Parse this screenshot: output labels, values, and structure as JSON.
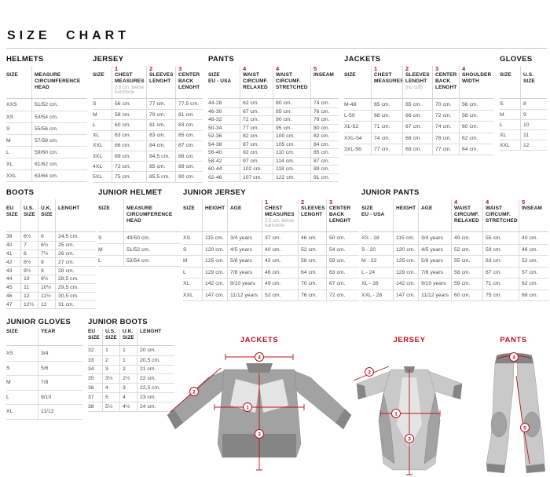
{
  "page": {
    "title": "SIZE CHART"
  },
  "colors": {
    "accent": "#bb1420"
  },
  "tables": {
    "helmets": {
      "title": "HELMETS",
      "columns": [
        {
          "label": "SIZE"
        },
        {
          "label": "MEASURE\nCIRCUMFERENCE\nHEAD"
        }
      ],
      "rows": [
        [
          "XXS",
          "51/52 cm."
        ],
        [
          "XS",
          "53/54 cm."
        ],
        [
          "S",
          "55/56 cm."
        ],
        [
          "M",
          "57/58 cm."
        ],
        [
          "L",
          "59/60 cm."
        ],
        [
          "XL",
          "61/62 cm."
        ],
        [
          "XXL",
          "63/64 cm."
        ]
      ]
    },
    "jersey": {
      "title": "JERSEY",
      "columns": [
        {
          "label": "SIZE"
        },
        {
          "num": "1",
          "label": "CHEST\nMEASURES",
          "note": "2,5 cm. below harmhole"
        },
        {
          "num": "2",
          "label": "SLEEVES\nLENGHT"
        },
        {
          "num": "3",
          "label": "CENTER\nBACK\nLENGHT"
        }
      ],
      "rows": [
        [
          "S",
          "56 cm.",
          "77 cm.",
          "77,5 cm."
        ],
        [
          "M",
          "58 cm.",
          "79 cm.",
          "81 cm."
        ],
        [
          "L",
          "60 cm.",
          "81 cm.",
          "83 cm."
        ],
        [
          "XL",
          "63 cm.",
          "83 cm.",
          "85 cm."
        ],
        [
          "XXL",
          "66 cm.",
          "84 cm.",
          "87 cm."
        ],
        [
          "3XL",
          "69 cm.",
          "84,5 cm.",
          "88 cm."
        ],
        [
          "4XL",
          "72 cm.",
          "85 cm.",
          "89 cm."
        ],
        [
          "5XL",
          "75 cm.",
          "85,5 cm.",
          "90 cm."
        ]
      ]
    },
    "pants": {
      "title": "PANTS",
      "columns": [
        {
          "label": "SIZE\nEU - USA"
        },
        {
          "num": "4",
          "label": "WAIST\nCIRCUMF.\nRELAXED"
        },
        {
          "num": "4",
          "label": "WAIST\nCIRCUMF.\nSTRETCHED"
        },
        {
          "num": "5",
          "label": "INSEAM"
        }
      ],
      "rows": [
        [
          "44-28",
          "62 cm.",
          "80 cm.",
          "74 cm."
        ],
        [
          "46-30",
          "67 cm.",
          "85 cm.",
          "76 cm."
        ],
        [
          "48-32",
          "72 cm.",
          "90 cm.",
          "78 cm."
        ],
        [
          "50-34",
          "77 cm.",
          "95 cm.",
          "80 cm."
        ],
        [
          "52-36",
          "82 cm.",
          "100 cm.",
          "82 cm."
        ],
        [
          "54-38",
          "87 cm.",
          "105 cm.",
          "84 cm."
        ],
        [
          "56-40",
          "92 cm.",
          "110 cm.",
          "85 cm."
        ],
        [
          "58-42",
          "97 cm.",
          "114 cm.",
          "87 cm."
        ],
        [
          "60-44",
          "102 cm.",
          "118 cm.",
          "89 cm."
        ],
        [
          "62-46",
          "107 cm.",
          "122 cm.",
          "91 cm."
        ]
      ]
    },
    "jackets": {
      "title": "JACKETS",
      "columns": [
        {
          "label": "SIZE"
        },
        {
          "num": "1",
          "label": "CHEST\nMEASURES"
        },
        {
          "num": "2",
          "label": "SLEEVES\nLENGHT",
          "note": "(no cuff)"
        },
        {
          "num": "3",
          "label": "CENTER\nBACK\nLENGHT"
        },
        {
          "num": "4",
          "label": "SHOULDER\nWIDTH"
        }
      ],
      "rows": [
        [
          "M-48",
          "65 cm.",
          "65 cm.",
          "70 cm.",
          "56 cm."
        ],
        [
          "L-50",
          "68 cm.",
          "66 cm.",
          "72 cm.",
          "58 cm."
        ],
        [
          "XL-52",
          "71 cm.",
          "67 cm.",
          "74 cm.",
          "60 cm."
        ],
        [
          "XXL-54",
          "74 cm.",
          "68 cm.",
          "76 cm.",
          "62 cm."
        ],
        [
          "3XL-56",
          "77 cm.",
          "69 cm.",
          "77 cm.",
          "64 cm."
        ]
      ]
    },
    "gloves": {
      "title": "GLOVES",
      "columns": [
        {
          "label": "SIZE"
        },
        {
          "label": "U.S. SIZE"
        }
      ],
      "rows": [
        [
          "S",
          "8"
        ],
        [
          "M",
          "9"
        ],
        [
          "L",
          "10"
        ],
        [
          "XL",
          "11"
        ],
        [
          "XXL",
          "12"
        ]
      ]
    },
    "boots": {
      "title": "BOOTS",
      "columns": [
        {
          "label": "EU\nSIZE"
        },
        {
          "label": "U.S.\nSIZE"
        },
        {
          "label": "U.K.\nSIZE"
        },
        {
          "label": "LENGHT"
        }
      ],
      "rows": [
        [
          "39",
          "6½",
          "6",
          "24,5 cm."
        ],
        [
          "40",
          "7",
          "6½",
          "25 cm."
        ],
        [
          "41",
          "8",
          "7½",
          "26 cm."
        ],
        [
          "42",
          "8½",
          "8",
          "27 cm."
        ],
        [
          "43",
          "9½",
          "9",
          "28 cm."
        ],
        [
          "44",
          "10",
          "9½",
          "28,5 cm."
        ],
        [
          "45",
          "11",
          "10½",
          "29,5 cm."
        ],
        [
          "46",
          "12",
          "11½",
          "30,5 cm."
        ],
        [
          "47",
          "12½",
          "12",
          "31 cm."
        ]
      ]
    },
    "junior_helmet": {
      "title": "JUNIOR HELMET",
      "columns": [
        {
          "label": "SIZE"
        },
        {
          "label": "MEASURE\nCIRCUMFERENCE\nHEAD"
        }
      ],
      "rows": [
        [
          "S",
          "49/50 cm."
        ],
        [
          "M",
          "51/52 cm."
        ],
        [
          "L",
          "53/54 cm."
        ]
      ]
    },
    "junior_jersey": {
      "title": "JUNIOR JERSEY",
      "columns": [
        {
          "label": "SIZE"
        },
        {
          "label": "HEIGHT"
        },
        {
          "label": "AGE"
        },
        {
          "num": "1",
          "label": "CHEST\nMEASURES",
          "note": "2,5 cm. below harmhole"
        },
        {
          "num": "2",
          "label": "SLEEVES\nLENGHT"
        },
        {
          "num": "3",
          "label": "CENTER\nBACK\nLENGHT"
        }
      ],
      "rows": [
        [
          "XS",
          "115 cm.",
          "3/4 years",
          "37 cm.",
          "46 cm.",
          "50 cm."
        ],
        [
          "S",
          "120 cm.",
          "4/5 years",
          "40 cm.",
          "52 cm.",
          "54 cm."
        ],
        [
          "M",
          "125 cm.",
          "5/6 years",
          "43 cm.",
          "58 cm.",
          "59 cm."
        ],
        [
          "L",
          "129 cm.",
          "7/8 years",
          "46 cm.",
          "64 cm.",
          "63 cm."
        ],
        [
          "XL",
          "142 cm.",
          "9/10 years",
          "49 cm.",
          "70 cm.",
          "67 cm."
        ],
        [
          "XXL",
          "147 cm.",
          "11/12 years",
          "52 cm.",
          "76 cm.",
          "72 cm."
        ]
      ]
    },
    "junior_pants": {
      "title": "JUNIOR PANTS",
      "columns": [
        {
          "label": "SIZE\nEU - USA"
        },
        {
          "label": "HEIGHT"
        },
        {
          "label": "AGE"
        },
        {
          "num": "4",
          "label": "WAIST\nCIRCUMF.\nRELAXED"
        },
        {
          "num": "4",
          "label": "WAIST\nCIRCUMF.\nSTRETCHED"
        },
        {
          "num": "5",
          "label": "INSEAM"
        }
      ],
      "rows": [
        [
          "XS - 18",
          "115 cm.",
          "3/4 years",
          "49 cm.",
          "55 cm.",
          "40 cm."
        ],
        [
          "S - 20",
          "120 cm.",
          "4/5 years",
          "52 cm.",
          "59 cm.",
          "46 cm."
        ],
        [
          "M - 22",
          "125 cm.",
          "5/6 years",
          "55 cm.",
          "63 cm.",
          "52 cm."
        ],
        [
          "L - 24",
          "129 cm.",
          "7/8 years",
          "58 cm.",
          "67 cm.",
          "57 cm."
        ],
        [
          "XL - 26",
          "142 cm.",
          "9/10 years",
          "59 cm.",
          "71 cm.",
          "62 cm."
        ],
        [
          "XXL - 28",
          "147 cm.",
          "11/12 years",
          "60 cm.",
          "75 cm.",
          "68 cm."
        ]
      ]
    },
    "junior_gloves": {
      "title": "JUNIOR GLOVES",
      "columns": [
        {
          "label": "SIZE"
        },
        {
          "label": "YEAR"
        }
      ],
      "rows": [
        [
          "XS",
          "3/4"
        ],
        [
          "S",
          "5/6"
        ],
        [
          "M",
          "7/8"
        ],
        [
          "L",
          "9/10"
        ],
        [
          "XL",
          "11/12"
        ]
      ]
    },
    "junior_boots": {
      "title": "JUNIOR BOOTS",
      "columns": [
        {
          "label": "EU\nSIZE"
        },
        {
          "label": "U.S.\nSIZE"
        },
        {
          "label": "U.K.\nSIZE"
        },
        {
          "label": "LENGHT"
        }
      ],
      "rows": [
        [
          "32",
          "1",
          "1",
          "20 cm."
        ],
        [
          "33",
          "2",
          "1",
          "20,5 cm."
        ],
        [
          "34",
          "3",
          "2",
          "21 cm."
        ],
        [
          "35",
          "3½",
          "2½",
          "22 cm."
        ],
        [
          "36",
          "4",
          "3",
          "22,5 cm."
        ],
        [
          "37",
          "5",
          "4",
          "23 cm."
        ],
        [
          "38",
          "5½",
          "4½",
          "24 cm."
        ]
      ]
    }
  },
  "diagrams": {
    "jackets": {
      "title": "JACKETS",
      "markers": [
        "4",
        "2",
        "1",
        "3"
      ]
    },
    "jersey": {
      "title": "JERSEY",
      "markers": [
        "2",
        "1",
        "3"
      ]
    },
    "pants": {
      "title": "PANTS",
      "markers": [
        "4",
        "5"
      ]
    }
  }
}
